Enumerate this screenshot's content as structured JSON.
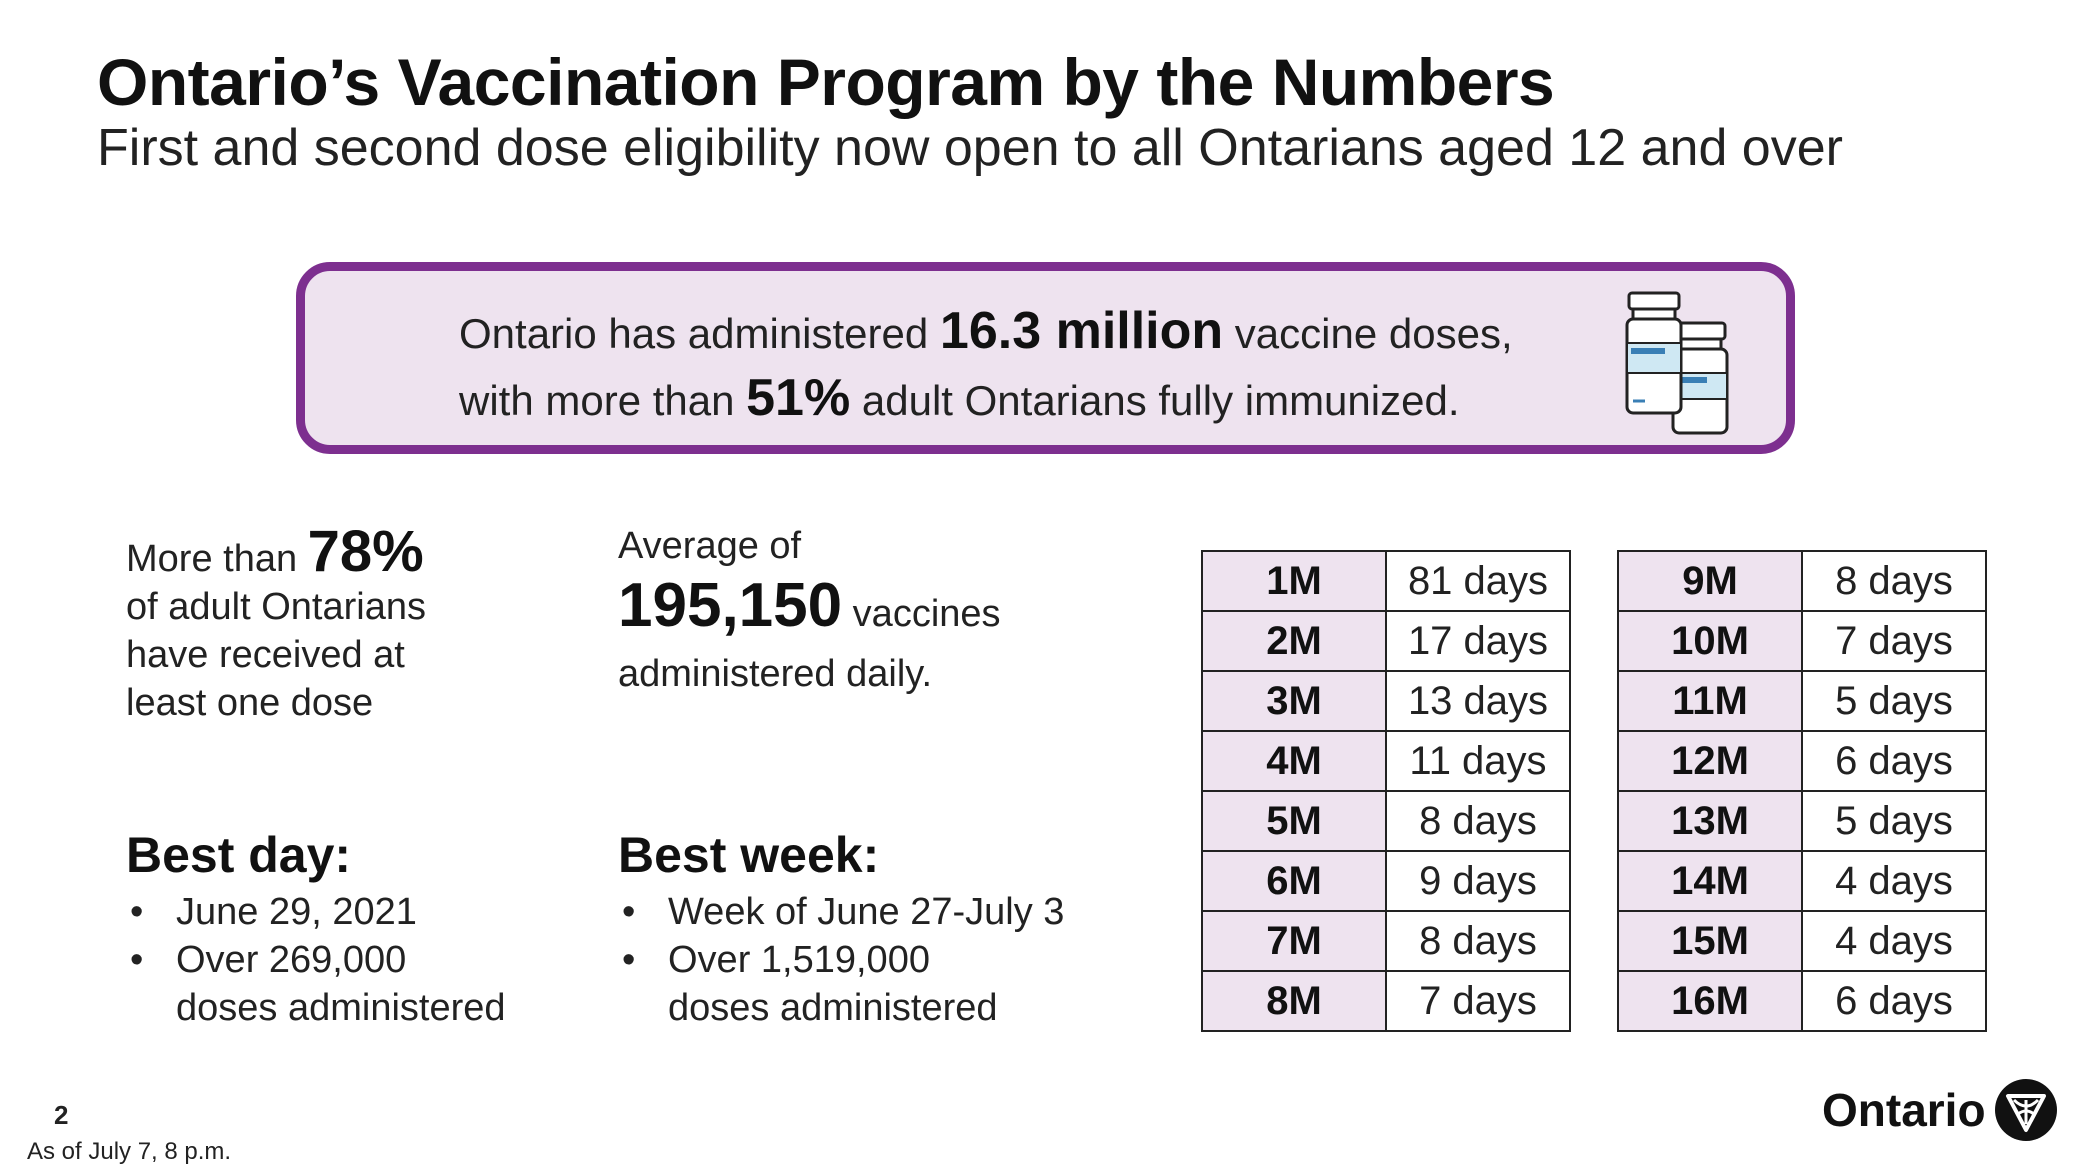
{
  "header": {
    "title": "Ontario’s Vaccination Program by the Numbers",
    "subtitle": "First and second dose eligibility now open to all Ontarians aged 12 and over"
  },
  "callout": {
    "line1_pre": "Ontario has administered ",
    "line1_bold": "16.3 million",
    "line1_post": " vaccine doses,",
    "line2_pre": "with more than ",
    "line2_bold": "51%",
    "line2_post": " adult Ontarians fully immunized.",
    "icon": "vaccine-vials-icon"
  },
  "stats": {
    "first_dose": {
      "pre": "More than ",
      "value": "78%",
      "lines": [
        "of adult Ontarians",
        "have received at",
        "least one dose"
      ]
    },
    "average": {
      "pre": "Average of",
      "value": "195,150",
      "post": " vaccines",
      "line3": "administered daily."
    }
  },
  "best_day": {
    "heading": "Best day:",
    "bullet1": "June 29, 2021",
    "bullet2": "Over 269,000",
    "bullet2_cont": "doses administered"
  },
  "best_week": {
    "heading": "Best week:",
    "bullet1": "Week of June 27-July 3",
    "bullet2": "Over 1,519,000",
    "bullet2_cont": "doses administered"
  },
  "milestones": {
    "left": [
      {
        "m": "1M",
        "d": "81 days"
      },
      {
        "m": "2M",
        "d": "17 days"
      },
      {
        "m": "3M",
        "d": "13 days"
      },
      {
        "m": "4M",
        "d": "11 days"
      },
      {
        "m": "5M",
        "d": "8 days"
      },
      {
        "m": "6M",
        "d": "9 days"
      },
      {
        "m": "7M",
        "d": "8 days"
      },
      {
        "m": "8M",
        "d": "7 days"
      }
    ],
    "right": [
      {
        "m": "9M",
        "d": "8 days"
      },
      {
        "m": "10M",
        "d": "7 days"
      },
      {
        "m": "11M",
        "d": "5 days"
      },
      {
        "m": "12M",
        "d": "6 days"
      },
      {
        "m": "13M",
        "d": "5 days"
      },
      {
        "m": "14M",
        "d": "4 days"
      },
      {
        "m": "15M",
        "d": "4 days"
      },
      {
        "m": "16M",
        "d": "6 days"
      }
    ]
  },
  "footer": {
    "page_number": "2",
    "as_of": "As of July 7, 8 p.m.",
    "logo_text": "Ontario",
    "logo_icon": "trillium-icon"
  },
  "colors": {
    "accent": "#7d2f8f",
    "callout_bg": "#eee3ef",
    "cell_bg": "#eee3ef"
  }
}
